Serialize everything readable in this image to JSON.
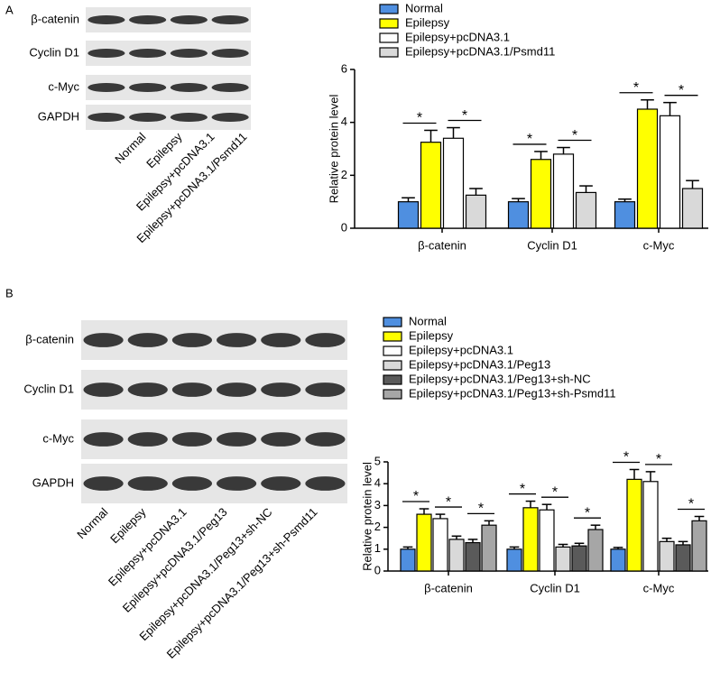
{
  "panels": [
    {
      "label": "A",
      "blot": {
        "proteins": [
          "β-catenin",
          "Cyclin D1",
          "c-Myc",
          "GAPDH"
        ],
        "lanes": [
          "Normal",
          "Epilepsy",
          "Epilepsy+pcDNA3.1",
          "Epilepsy+pcDNA3.1/Psmd11"
        ]
      }
    },
    {
      "label": "B",
      "blot": {
        "proteins": [
          "β-catenin",
          "Cyclin D1",
          "c-Myc",
          "GAPDH"
        ],
        "lanes": [
          "Normal",
          "Epilepsy",
          "Epilepsy+pcDNA3.1",
          "Epilepsy+pcDNA3.1/Peg13",
          "Epilepsy+pcDNA3.1/Peg13+sh-NC",
          "Epilepsy+pcDNA3.1/Peg13+sh-Psmd11"
        ]
      }
    }
  ],
  "chart_data": [
    {
      "type": "bar",
      "ylabel": "Relative protein level",
      "categories": [
        "β-catenin",
        "Cyclin D1",
        "c-Myc"
      ],
      "series": [
        {
          "name": "Normal",
          "color": "#4f8fe0",
          "values": [
            1.0,
            1.0,
            1.0
          ],
          "errors": [
            0.15,
            0.12,
            0.1
          ]
        },
        {
          "name": "Epilepsy",
          "color": "#ffff00",
          "values": [
            3.25,
            2.6,
            4.5
          ],
          "errors": [
            0.45,
            0.3,
            0.35
          ]
        },
        {
          "name": "Epilepsy+pcDNA3.1",
          "color": "#ffffff",
          "values": [
            3.4,
            2.8,
            4.25
          ],
          "errors": [
            0.4,
            0.25,
            0.5
          ]
        },
        {
          "name": "Epilepsy+pcDNA3.1/Psmd11",
          "color": "#d9d9d9",
          "values": [
            1.25,
            1.35,
            1.5
          ],
          "errors": [
            0.25,
            0.25,
            0.3
          ]
        }
      ],
      "comparisons": [
        {
          "label": "*",
          "series": [
            "Normal",
            "Epilepsy"
          ]
        },
        {
          "label": "*",
          "series": [
            "Epilepsy+pcDNA3.1",
            "Epilepsy+pcDNA3.1/Psmd11"
          ]
        }
      ],
      "ylim": [
        0,
        6
      ],
      "yticks": [
        0,
        2,
        4,
        6
      ],
      "legend": "top"
    },
    {
      "type": "bar",
      "ylabel": "Relative protein level",
      "categories": [
        "β-catenin",
        "Cyclin D1",
        "c-Myc"
      ],
      "series": [
        {
          "name": "Normal",
          "color": "#4f8fe0",
          "values": [
            1.0,
            1.0,
            1.0
          ],
          "errors": [
            0.1,
            0.1,
            0.08
          ]
        },
        {
          "name": "Epilepsy",
          "color": "#ffff00",
          "values": [
            2.6,
            2.9,
            4.2
          ],
          "errors": [
            0.25,
            0.3,
            0.45
          ]
        },
        {
          "name": "Epilepsy+pcDNA3.1",
          "color": "#ffffff",
          "values": [
            2.4,
            2.8,
            4.1
          ],
          "errors": [
            0.2,
            0.25,
            0.45
          ]
        },
        {
          "name": "Epilepsy+pcDNA3.1/Peg13",
          "color": "#d9d9d9",
          "values": [
            1.45,
            1.1,
            1.35
          ],
          "errors": [
            0.15,
            0.12,
            0.15
          ]
        },
        {
          "name": "Epilepsy+pcDNA3.1/Peg13+sh-NC",
          "color": "#5a5a5a",
          "values": [
            1.3,
            1.15,
            1.2
          ],
          "errors": [
            0.15,
            0.12,
            0.15
          ]
        },
        {
          "name": "Epilepsy+pcDNA3.1/Peg13+sh-Psmd11",
          "color": "#a6a6a6",
          "values": [
            2.1,
            1.9,
            2.3
          ],
          "errors": [
            0.2,
            0.2,
            0.2
          ]
        }
      ],
      "comparisons": [
        {
          "label": "*",
          "series": [
            "Normal",
            "Epilepsy"
          ]
        },
        {
          "label": "*",
          "series": [
            "Epilepsy+pcDNA3.1",
            "Epilepsy+pcDNA3.1/Peg13"
          ]
        },
        {
          "label": "*",
          "series": [
            "Epilepsy+pcDNA3.1/Peg13+sh-NC",
            "Epilepsy+pcDNA3.1/Peg13+sh-Psmd11"
          ]
        }
      ],
      "ylim": [
        0,
        5
      ],
      "yticks": [
        0,
        1,
        2,
        3,
        4,
        5
      ],
      "legend": "top"
    }
  ]
}
